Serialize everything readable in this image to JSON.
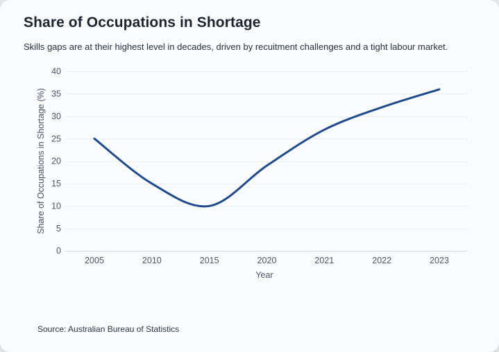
{
  "page": {
    "title": "Share of Occupations in Shortage",
    "subtitle": "Skills gaps are at their highest level in decades, driven by recuitment challenges and a tight labour market.",
    "source": "Source: Australian Bureau of Statistics"
  },
  "colors": {
    "line": "#1e4b8d",
    "axis_text": "#475469",
    "grid": "#ebedf0",
    "axis_line": "#d3d7de",
    "card_bg": "#fafbfc",
    "page_bg": "#e7eae8",
    "title_text": "#1b2430",
    "subtitle_text": "#252f3d",
    "source_text": "#2a3442"
  },
  "chart_data": {
    "type": "line",
    "categories": [
      "2005",
      "2010",
      "2015",
      "2020",
      "2021",
      "2022",
      "2023"
    ],
    "values": [
      25,
      15,
      10,
      19,
      27,
      32,
      36
    ],
    "title": "Share of Occupations in Shortage",
    "xlabel": "Year",
    "ylabel": "Share of Occupations in Shortage (%)",
    "ylim": [
      0,
      40
    ],
    "yticks": [
      0,
      5,
      10,
      15,
      20,
      25,
      30,
      35,
      40
    ],
    "grid": true,
    "legend": false,
    "smooth": true
  }
}
